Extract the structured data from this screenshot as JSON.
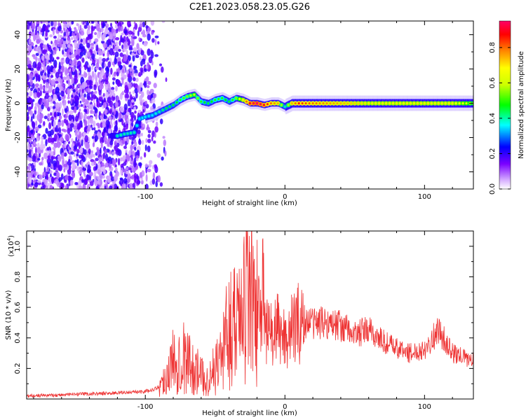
{
  "chart_data": [
    {
      "type": "heatmap",
      "title": "C2E1.2023.058.23.05.G26",
      "xlabel": "Height of straight line (km)",
      "ylabel": "Frequency (Hz)",
      "xlim": [
        -185,
        135
      ],
      "ylim": [
        -50,
        48
      ],
      "x_ticks": [
        -100,
        0,
        100
      ],
      "x_tick_labels": [
        "-100",
        "0",
        "100"
      ],
      "y_ticks": [
        -40,
        -20,
        0,
        20,
        40
      ],
      "y_tick_labels": [
        "-40",
        "-20",
        "0",
        "20",
        "40"
      ],
      "colorbar": {
        "label": "Normalized spectral amplitude",
        "range": [
          0,
          0.95
        ],
        "ticks": [
          0.0,
          0.2,
          0.4,
          0.6,
          0.8
        ],
        "tick_labels": [
          "0.0",
          "0.2",
          "0.4",
          "0.6",
          "0.8"
        ]
      },
      "ridge": {
        "x": [
          -120,
          -115,
          -108,
          -104,
          -100,
          -95,
          -90,
          -85,
          -80,
          -75,
          -70,
          -65,
          -60,
          -55,
          -50,
          -45,
          -40,
          -35,
          -30,
          -25,
          -20,
          -15,
          -10,
          -5,
          0,
          5,
          10,
          20,
          40,
          60,
          80,
          100,
          120,
          135
        ],
        "y": [
          -19,
          -18,
          -17,
          -9,
          -8,
          -7,
          -5,
          -3,
          -1,
          2,
          4,
          5,
          1,
          0,
          2,
          3,
          1,
          3,
          2,
          0,
          0,
          -1,
          0,
          0,
          -2,
          0,
          0,
          0,
          0,
          0,
          0,
          0,
          0,
          0
        ],
        "amplitude": [
          0.4,
          0.4,
          0.4,
          0.35,
          0.35,
          0.35,
          0.4,
          0.45,
          0.45,
          0.5,
          0.55,
          0.6,
          0.5,
          0.45,
          0.5,
          0.5,
          0.45,
          0.55,
          0.7,
          0.9,
          0.95,
          0.9,
          0.8,
          0.75,
          0.4,
          0.75,
          0.85,
          0.8,
          0.75,
          0.7,
          0.7,
          0.7,
          0.7,
          0.6
        ]
      },
      "noise_region_x": [
        -185,
        -95
      ],
      "grid": false
    },
    {
      "type": "line",
      "title": "",
      "xlabel": "Height of straight line (km)",
      "ylabel": "SNR (10 * v/v)",
      "y_multiplier": "(x10",
      "y_multiplier_exp": "4",
      "y_multiplier_close": ")",
      "xlim": [
        -185,
        135
      ],
      "ylim": [
        0,
        1.1
      ],
      "x_ticks": [
        -100,
        0,
        100
      ],
      "x_tick_labels": [
        "-100",
        "0",
        "100"
      ],
      "y_ticks": [
        0.2,
        0.4,
        0.6,
        0.8,
        1.0
      ],
      "y_tick_labels": [
        "0.2",
        "0.4",
        "0.6",
        "0.8",
        "1.0"
      ],
      "series": [
        {
          "color": "#ee3333",
          "x": [
            -185,
            -150,
            -120,
            -100,
            -95,
            -90,
            -85,
            -80,
            -75,
            -70,
            -65,
            -60,
            -55,
            -50,
            -45,
            -40,
            -35,
            -30,
            -25,
            -20,
            -15,
            -10,
            -5,
            0,
            5,
            10,
            20,
            30,
            40,
            50,
            60,
            70,
            80,
            90,
            100,
            110,
            120,
            135
          ],
          "y": [
            0.02,
            0.03,
            0.04,
            0.05,
            0.06,
            0.08,
            0.15,
            0.25,
            0.3,
            0.25,
            0.2,
            0.15,
            0.12,
            0.2,
            0.3,
            0.45,
            0.55,
            0.6,
            0.75,
            0.55,
            0.45,
            0.42,
            0.45,
            0.4,
            0.45,
            0.5,
            0.5,
            0.5,
            0.48,
            0.42,
            0.45,
            0.38,
            0.33,
            0.3,
            0.33,
            0.45,
            0.3,
            0.25
          ]
        }
      ],
      "grid": false
    }
  ]
}
